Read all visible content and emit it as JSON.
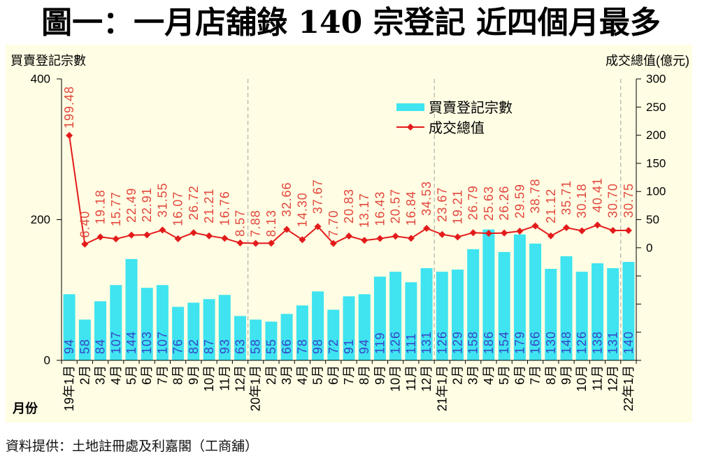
{
  "source": "資料提供：土地註冊處及利嘉閣（工商舖）",
  "colors": {
    "background": "#fffde3",
    "bar": "#3fe4f0",
    "bar_label": "#3646c8",
    "line": "#e31b1b",
    "line_label": "#e2463c",
    "divider": "#b0b0b0"
  },
  "chart_data": {
    "type": "bar",
    "title": "圖一：一月店舖錄 140 宗登記 近四個月最多",
    "xlabel": "月份",
    "ylabel": "買賣登記宗數",
    "y2label": "成交總值(億元)",
    "categories": [
      "19年1月",
      "2月",
      "3月",
      "4月",
      "5月",
      "6月",
      "7月",
      "8月",
      "9月",
      "10月",
      "11月",
      "12月",
      "20年1月",
      "2月",
      "3月",
      "4月",
      "5月",
      "6月",
      "7月",
      "8月",
      "9月",
      "10月",
      "11月",
      "12月",
      "21年1月",
      "2月",
      "3月",
      "4月",
      "5月",
      "6月",
      "7月",
      "8月",
      "9月",
      "10月",
      "11月",
      "12月",
      "22年1月"
    ],
    "series": [
      {
        "name": "買賣登記宗數",
        "type": "bar",
        "axis": "left",
        "values": [
          94,
          58,
          84,
          107,
          144,
          103,
          107,
          76,
          82,
          87,
          93,
          63,
          58,
          55,
          66,
          78,
          98,
          72,
          91,
          94,
          119,
          126,
          111,
          131,
          126,
          129,
          158,
          186,
          154,
          179,
          166,
          130,
          148,
          126,
          138,
          131,
          140
        ]
      },
      {
        "name": "成交總值",
        "type": "line",
        "axis": "right",
        "values": [
          199.48,
          6.4,
          19.18,
          15.77,
          22.49,
          22.91,
          31.55,
          16.07,
          26.72,
          21.21,
          16.76,
          8.57,
          7.88,
          8.13,
          32.66,
          14.3,
          37.67,
          7.7,
          20.83,
          13.17,
          16.43,
          20.57,
          16.84,
          34.53,
          23.67,
          19.21,
          26.79,
          25.63,
          26.26,
          29.59,
          38.78,
          21.12,
          35.71,
          30.18,
          40.41,
          30.7,
          30.75
        ],
        "data_labels": [
          "199.48",
          "6.40",
          "19.18",
          "15.77",
          "22.49",
          "22.91",
          "31.55",
          "16.07",
          "26.72",
          "21.21",
          "16.76",
          "8.57",
          "7.88",
          "8.13",
          "32.66",
          "14.30",
          "37.67",
          "7.70",
          "20.83",
          "13.17",
          "16.43",
          "20.57",
          "16.84",
          "34.53",
          "23.67",
          "19.21",
          "26.79",
          "25.63",
          "26.26",
          "29.59",
          "38.78",
          "21.12",
          "35.71",
          "30.18",
          "40.41",
          "30.70",
          "30.75"
        ]
      }
    ],
    "ylim": [
      0,
      400
    ],
    "yticks": [
      0,
      200,
      400
    ],
    "y2lim": [
      -200,
      300
    ],
    "y2ticks": [
      0,
      50,
      100,
      150,
      200,
      250,
      300
    ],
    "grid": false,
    "legend": "top-right"
  }
}
